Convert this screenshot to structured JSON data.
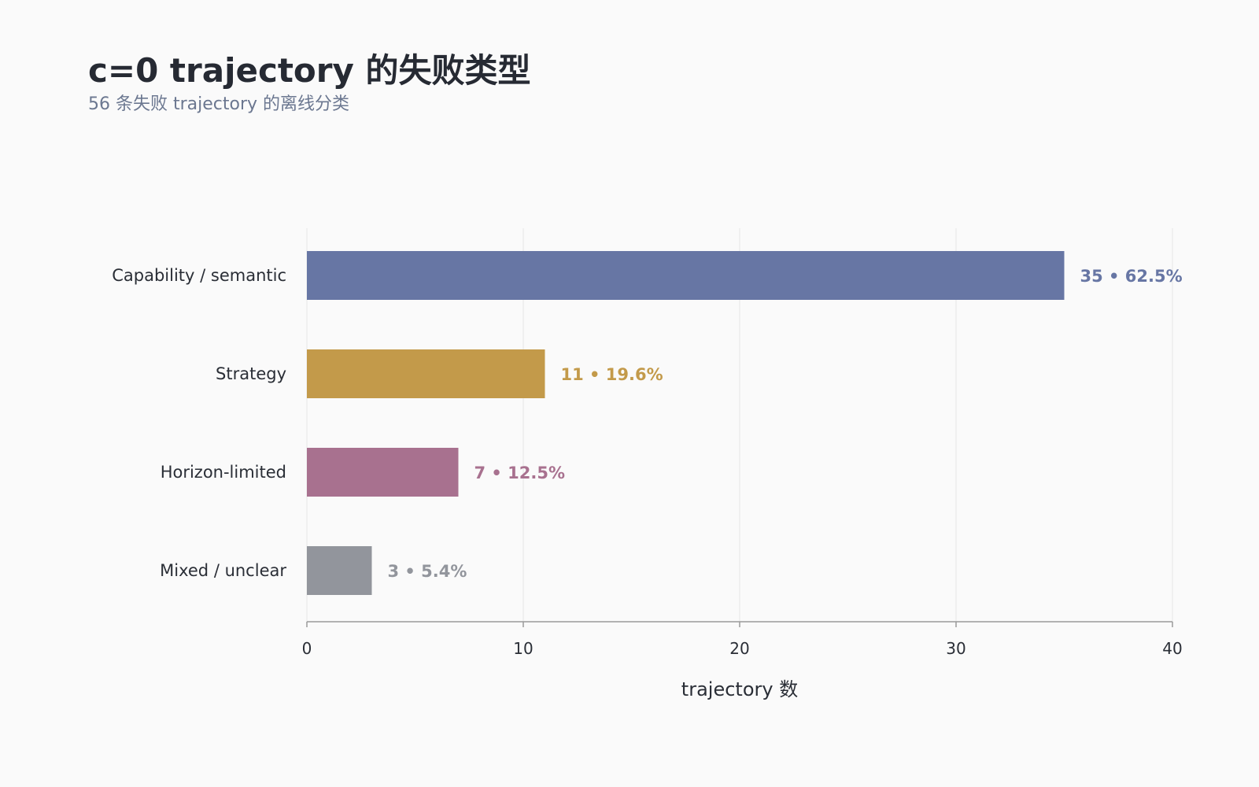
{
  "chart_data": {
    "type": "bar",
    "orientation": "horizontal",
    "title": "c=0 trajectory 的失败类型",
    "subtitle": "56 条失败 trajectory 的离线分类",
    "xlabel": "trajectory 数",
    "ylabel": "",
    "xlim": [
      0,
      40
    ],
    "xticks": [
      "0",
      "10",
      "20",
      "30",
      "40"
    ],
    "grid": true,
    "categories": [
      "Capability / semantic",
      "Strategy",
      "Horizon-limited",
      "Mixed / unclear"
    ],
    "values": [
      35,
      11,
      7,
      3
    ],
    "value_labels": [
      "35 • 62.5%",
      "11 • 19.6%",
      "7 • 12.5%",
      "3 • 5.4%"
    ],
    "colors": [
      "#6776a4",
      "#c39a4a",
      "#a8718f",
      "#92959c"
    ]
  }
}
